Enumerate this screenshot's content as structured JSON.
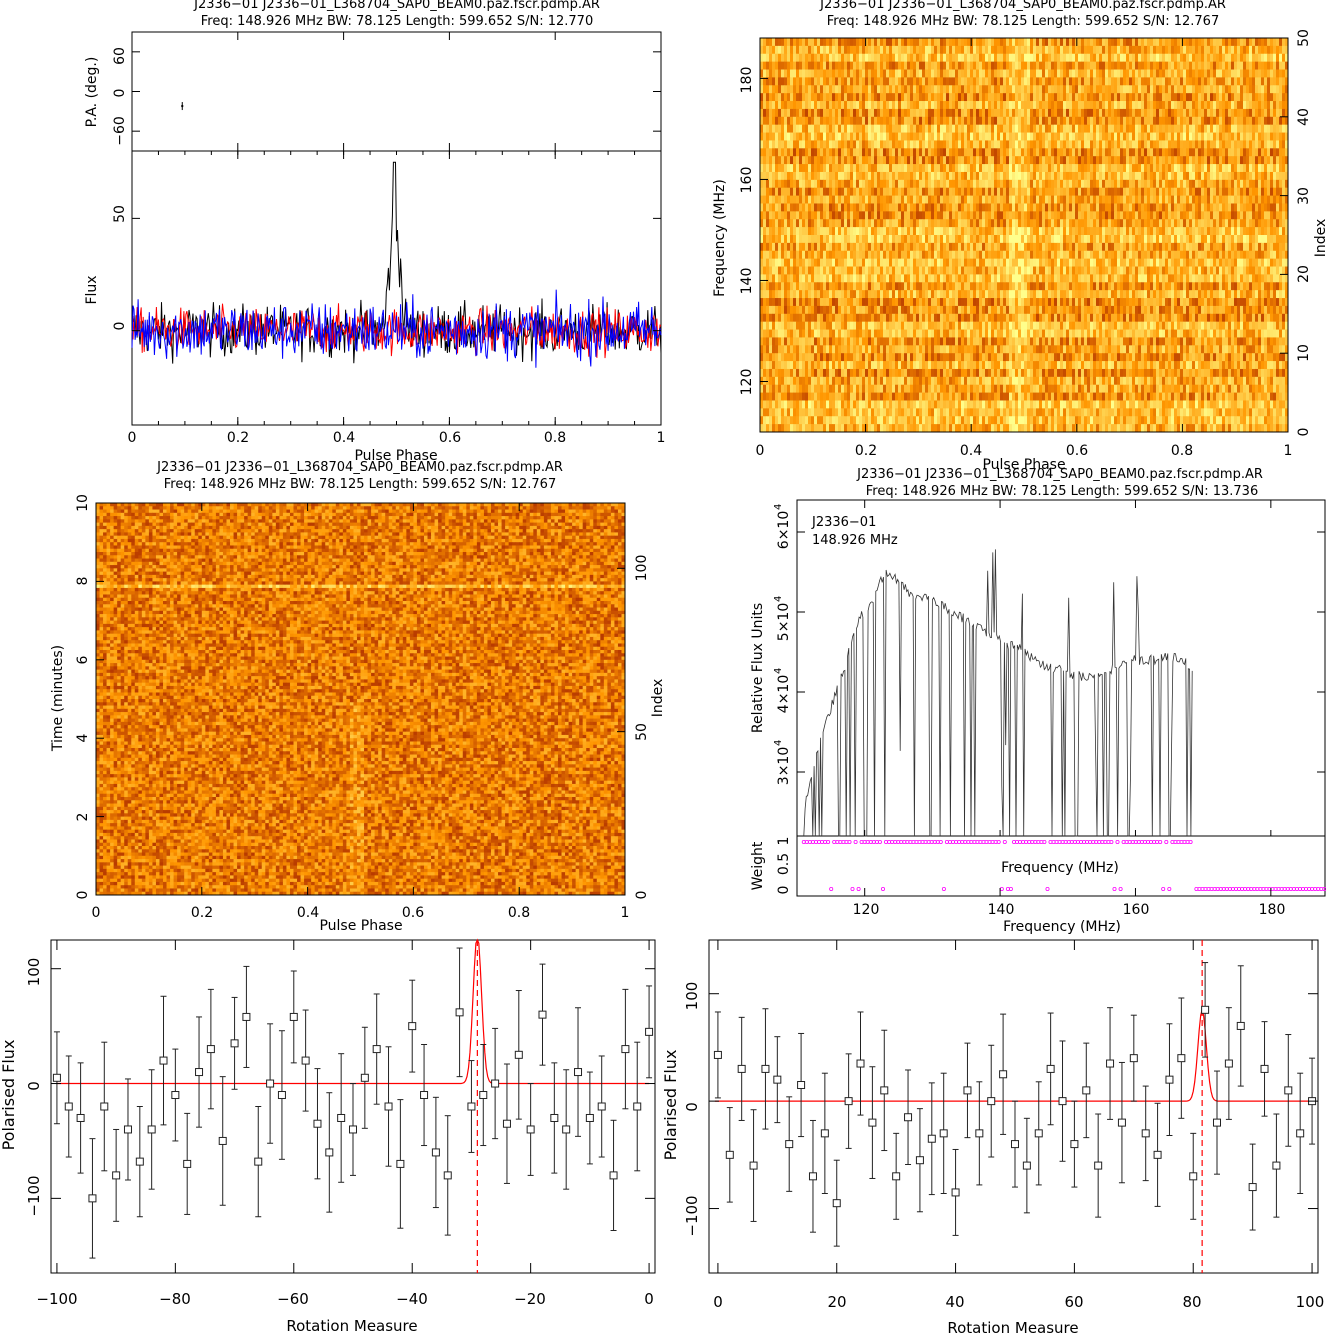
{
  "panels": {
    "profile": {
      "title1": "J2336−01  J2336−01_L368704_SAP0_BEAM0.paz.fscr.pdmp.AR",
      "title2": "Freq: 148.926 MHz BW: 78.125 Length: 599.652 S/N: 12.770",
      "pa_ylabel": "P.A. (deg.)",
      "flux_ylabel": "Flux",
      "xlabel": "Pulse Phase"
    },
    "freqphase": {
      "title1": "J2336−01  J2336−01_L368704_SAP0_BEAM0.paz.fscr.pdmp.AR",
      "title2": "Freq: 148.926 MHz BW: 78.125 Length: 599.652 S/N: 12.767",
      "ylabel": "Frequency (MHz)",
      "y2label": "Index",
      "xlabel": "Pulse Phase"
    },
    "timephase": {
      "title1": "J2336−01  J2336−01_L368704_SAP0_BEAM0.paz.fscr.pdmp.AR",
      "title2": "Freq: 148.926 MHz BW: 78.125 Length: 599.652 S/N: 12.767",
      "ylabel": "Time (minutes)",
      "y2label": "Index",
      "xlabel": "Pulse Phase"
    },
    "bandpass": {
      "title1": "J2336−01  J2336−01_L368704_SAP0_BEAM0.paz.fscr.pdmp.AR",
      "title2": "Freq: 148.926 MHz BW: 78.125 Length: 599.652 S/N: 13.736",
      "ann1": "J2336−01",
      "ann2": "148.926 MHz",
      "ylabel": "Relative Flux Units",
      "weight_ylabel": "Weight",
      "inner_xlabel": "Frequency (MHz)",
      "xlabel": "Frequency (MHz)"
    },
    "rm_left": {
      "ylabel": "Polarised Flux",
      "xlabel": "Rotation Measure"
    },
    "rm_right": {
      "ylabel": "Polarised Flux",
      "xlabel": "Rotation Measure"
    }
  },
  "ticks": {
    "pa_y": [
      "60",
      "0",
      "−60"
    ],
    "flux_y": [
      "50",
      "0"
    ],
    "phase_x": [
      "0",
      "0.2",
      "0.4",
      "0.6",
      "0.8",
      "1"
    ],
    "freq_y": [
      "120",
      "140",
      "160",
      "180"
    ],
    "freq_index": [
      "0",
      "10",
      "20",
      "30",
      "40",
      "50"
    ],
    "time_y": [
      "0",
      "2",
      "4",
      "6",
      "8",
      "10"
    ],
    "time_index": [
      "0",
      "50",
      "100"
    ],
    "bp_x": [
      "120",
      "140",
      "160",
      "180"
    ],
    "bp_y_base": [
      "3×10",
      "4×10",
      "5×10",
      "6×10"
    ],
    "bp_y_exp": "4",
    "weight_y": [
      "0",
      "0.5",
      "1"
    ],
    "rm_left_x": [
      "−100",
      "−80",
      "−60",
      "−40",
      "−20",
      "0"
    ],
    "rm_left_y": [
      "−100",
      "0",
      "100"
    ],
    "rm_right_x": [
      "0",
      "20",
      "40",
      "60",
      "80",
      "100"
    ],
    "rm_right_y": [
      "−100",
      "0",
      "100"
    ]
  },
  "colors": {
    "stokes_I": "#000000",
    "linear": "#ff0000",
    "circular": "#0000ff",
    "weight_points": "#ff00ff",
    "rm_fit": "#ff0000",
    "heat_low": "#8b0000",
    "heat_mid": "#ffa500",
    "heat_high": "#ffff80"
  },
  "chart_data": [
    {
      "type": "line",
      "name": "profile_flux",
      "series": [
        {
          "color": "#000000",
          "peak_phase": 0.497,
          "peak_value": 75
        },
        {
          "color": "#ff0000"
        },
        {
          "color": "#0000ff"
        }
      ],
      "xlabel": "Pulse Phase",
      "ylabel": "Flux",
      "xlim": [
        0,
        1
      ],
      "ylim": [
        -42,
        80
      ]
    },
    {
      "type": "scatter",
      "name": "position_angle",
      "x": [
        0.095
      ],
      "y": [
        -22
      ],
      "xlim": [
        0,
        1
      ],
      "ylim": [
        -90,
        90
      ],
      "ylabel": "P.A. (deg.)"
    },
    {
      "type": "heatmap",
      "name": "frequency_vs_phase",
      "xlim": [
        0,
        1
      ],
      "ylim": [
        110,
        188
      ],
      "index_range": [
        0,
        50
      ],
      "xlabel": "Pulse Phase",
      "ylabel": "Frequency (MHz)"
    },
    {
      "type": "heatmap",
      "name": "time_vs_phase",
      "xlim": [
        0,
        1
      ],
      "ylim": [
        0,
        10
      ],
      "index_range": [
        0,
        120
      ],
      "xlabel": "Pulse Phase",
      "ylabel": "Time (minutes)"
    },
    {
      "type": "line",
      "name": "bandpass",
      "x": [
        111.0,
        113.0,
        115.0,
        117.0,
        119.0,
        121.0,
        123.0,
        125.0,
        127.0,
        129.0,
        131.0,
        133.0,
        135.0,
        137.0,
        139.0,
        141.0,
        143.0,
        145.0,
        147.0,
        149.0,
        151.0,
        153.0,
        155.0,
        157.0,
        159.0,
        161.0,
        163.0,
        165.0,
        167.0,
        168.5
      ],
      "y": [
        25000,
        33000,
        38000,
        43000,
        49000,
        51000,
        55000,
        54000,
        52000,
        52000,
        51000,
        50000,
        49000,
        48000,
        47000,
        46000,
        45500,
        44000,
        43000,
        43000,
        42000,
        42000,
        42500,
        43000,
        44000,
        44000,
        44000,
        44500,
        44000,
        43000
      ],
      "xlabel": "Frequency (MHz)",
      "ylabel": "Relative Flux Units",
      "xlim": [
        110,
        188
      ],
      "ylim": [
        22000,
        64000
      ]
    },
    {
      "type": "scatter",
      "name": "channel_weights",
      "xlim": [
        110,
        188
      ],
      "ylim": [
        0,
        1
      ],
      "ylabel": "Weight"
    },
    {
      "type": "scatter",
      "name": "rm_spectrum_left",
      "x": [
        -100,
        -98,
        -96,
        -94,
        -92,
        -90,
        -88,
        -86,
        -84,
        -82,
        -80,
        -78,
        -76,
        -74,
        -72,
        -70,
        -68,
        -66,
        -64,
        -62,
        -60,
        -58,
        -56,
        -54,
        -52,
        -50,
        -48,
        -46,
        -44,
        -42,
        -40,
        -38,
        -36,
        -34,
        -32,
        -30,
        -28,
        -26,
        -24,
        -22,
        -20,
        -18,
        -16,
        -14,
        -12,
        -10,
        -8,
        -6,
        -4,
        -2,
        0
      ],
      "y": [
        5,
        -20,
        -30,
        -100,
        -20,
        -80,
        -40,
        -68,
        -40,
        20,
        -10,
        -70,
        10,
        30,
        -50,
        35,
        58,
        -68,
        0,
        -10,
        58,
        20,
        -35,
        -60,
        -30,
        -40,
        5,
        30,
        -20,
        -70,
        50,
        -10,
        -60,
        -80,
        62,
        -20,
        -10,
        0,
        -35,
        25,
        -40,
        60,
        -30,
        -40,
        10,
        -30,
        -20,
        -80,
        30,
        -20,
        45
      ],
      "fit_peak": [
        -29,
        130
      ],
      "xlabel": "Rotation Measure",
      "ylabel": "Polarised Flux",
      "xlim": [
        -101,
        1
      ],
      "ylim": [
        -165,
        125
      ]
    },
    {
      "type": "scatter",
      "name": "rm_spectrum_right",
      "x": [
        0,
        2,
        4,
        6,
        8,
        10,
        12,
        14,
        16,
        18,
        20,
        22,
        24,
        26,
        28,
        30,
        32,
        34,
        36,
        38,
        40,
        42,
        44,
        46,
        48,
        50,
        52,
        54,
        56,
        58,
        60,
        62,
        64,
        66,
        68,
        70,
        72,
        74,
        76,
        78,
        80,
        82,
        84,
        86,
        88,
        90,
        92,
        94,
        96,
        98,
        100
      ],
      "y": [
        43,
        -50,
        30,
        -60,
        30,
        20,
        -40,
        15,
        -70,
        -30,
        -95,
        0,
        35,
        -20,
        10,
        -70,
        -15,
        -55,
        -35,
        -30,
        -85,
        10,
        -30,
        0,
        25,
        -40,
        -60,
        -30,
        30,
        0,
        -40,
        10,
        -60,
        35,
        -20,
        40,
        -30,
        -50,
        20,
        40,
        -70,
        85,
        -20,
        35,
        70,
        -80,
        30,
        -60,
        10,
        -30,
        0
      ],
      "fit_peak": [
        81.5,
        85
      ],
      "xlabel": "Rotation Measure",
      "ylabel": "Polarised Flux",
      "xlim": [
        -1.5,
        101
      ],
      "ylim": [
        -160,
        150
      ]
    }
  ]
}
